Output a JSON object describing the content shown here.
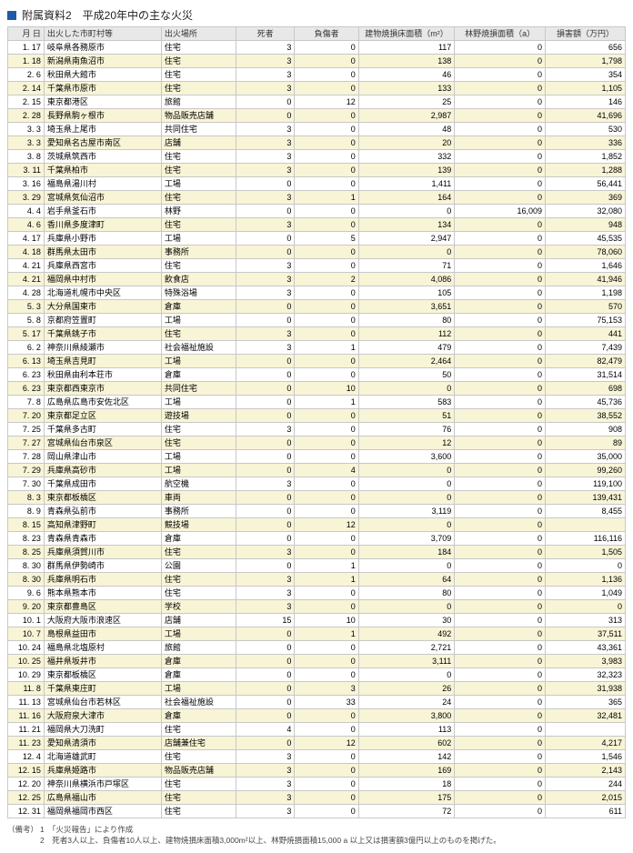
{
  "title": "附属資料2　平成20年中の主な火災",
  "headers": [
    "月 日",
    "出火した市町村等",
    "出火場所",
    "死者",
    "負傷者",
    "建物焼損床面積（m²）",
    "林野焼損面積（a）",
    "損害額（万円）"
  ],
  "rows": [
    [
      "1. 17",
      "岐阜県各務原市",
      "住宅",
      "3",
      "0",
      "117",
      "0",
      "656"
    ],
    [
      "1. 18",
      "新潟県南魚沼市",
      "住宅",
      "3",
      "0",
      "138",
      "0",
      "1,798"
    ],
    [
      "2.  6",
      "秋田県大館市",
      "住宅",
      "3",
      "0",
      "46",
      "0",
      "354"
    ],
    [
      "2. 14",
      "千葉県市原市",
      "住宅",
      "3",
      "0",
      "133",
      "0",
      "1,105"
    ],
    [
      "2. 15",
      "東京都港区",
      "旅館",
      "0",
      "12",
      "25",
      "0",
      "146"
    ],
    [
      "2. 28",
      "長野県駒ヶ根市",
      "物品販売店舗",
      "0",
      "0",
      "2,987",
      "0",
      "41,696"
    ],
    [
      "3.  3",
      "埼玉県上尾市",
      "共同住宅",
      "3",
      "0",
      "48",
      "0",
      "530"
    ],
    [
      "3.  3",
      "愛知県名古屋市南区",
      "店舗",
      "3",
      "0",
      "20",
      "0",
      "336"
    ],
    [
      "3.  8",
      "茨城県筑西市",
      "住宅",
      "3",
      "0",
      "332",
      "0",
      "1,852"
    ],
    [
      "3. 11",
      "千葉県柏市",
      "住宅",
      "3",
      "0",
      "139",
      "0",
      "1,288"
    ],
    [
      "3. 16",
      "福島県湯川村",
      "工場",
      "0",
      "0",
      "1,411",
      "0",
      "56,441"
    ],
    [
      "3. 29",
      "宮城県気仙沼市",
      "住宅",
      "3",
      "1",
      "164",
      "0",
      "369"
    ],
    [
      "4.  4",
      "岩手県釜石市",
      "林野",
      "0",
      "0",
      "0",
      "16,009",
      "32,080"
    ],
    [
      "4.  6",
      "香川県多度津町",
      "住宅",
      "3",
      "0",
      "134",
      "0",
      "948"
    ],
    [
      "4. 17",
      "兵庫県小野市",
      "工場",
      "0",
      "5",
      "2,947",
      "0",
      "45,535"
    ],
    [
      "4. 18",
      "群馬県太田市",
      "事務所",
      "0",
      "0",
      "0",
      "0",
      "78,060"
    ],
    [
      "4. 21",
      "兵庫県西宮市",
      "住宅",
      "3",
      "0",
      "71",
      "0",
      "1,646"
    ],
    [
      "4. 21",
      "福岡県中村市",
      "飲食店",
      "3",
      "2",
      "4,086",
      "0",
      "41,946"
    ],
    [
      "4. 28",
      "北海道札幌市中央区",
      "特殊浴場",
      "3",
      "0",
      "105",
      "0",
      "1,198"
    ],
    [
      "5.  3",
      "大分県国東市",
      "倉庫",
      "0",
      "0",
      "3,651",
      "0",
      "570"
    ],
    [
      "5.  8",
      "京都府笠置町",
      "工場",
      "0",
      "0",
      "80",
      "0",
      "75,153"
    ],
    [
      "5. 17",
      "千葉県銚子市",
      "住宅",
      "3",
      "0",
      "112",
      "0",
      "441"
    ],
    [
      "6.  2",
      "神奈川県綾瀬市",
      "社会福祉施設",
      "3",
      "1",
      "479",
      "0",
      "7,439"
    ],
    [
      "6. 13",
      "埼玉県吉見町",
      "工場",
      "0",
      "0",
      "2,464",
      "0",
      "82,479"
    ],
    [
      "6. 23",
      "秋田県由利本荘市",
      "倉庫",
      "0",
      "0",
      "50",
      "0",
      "31,514"
    ],
    [
      "6. 23",
      "東京都西東京市",
      "共同住宅",
      "0",
      "10",
      "0",
      "0",
      "698"
    ],
    [
      "7.  8",
      "広島県広島市安佐北区",
      "工場",
      "0",
      "1",
      "583",
      "0",
      "45,736"
    ],
    [
      "7. 20",
      "東京都足立区",
      "遊技場",
      "0",
      "0",
      "51",
      "0",
      "38,552"
    ],
    [
      "7. 25",
      "千葉県多古町",
      "住宅",
      "3",
      "0",
      "76",
      "0",
      "908"
    ],
    [
      "7. 27",
      "宮城県仙台市泉区",
      "住宅",
      "0",
      "0",
      "12",
      "0",
      "89"
    ],
    [
      "7. 28",
      "岡山県津山市",
      "工場",
      "0",
      "0",
      "3,600",
      "0",
      "35,000"
    ],
    [
      "7. 29",
      "兵庫県高砂市",
      "工場",
      "0",
      "4",
      "0",
      "0",
      "99,260"
    ],
    [
      "7. 30",
      "千葉県成田市",
      "航空機",
      "3",
      "0",
      "0",
      "0",
      "119,100"
    ],
    [
      "8.  3",
      "東京都板橋区",
      "車両",
      "0",
      "0",
      "0",
      "0",
      "139,431"
    ],
    [
      "8.  9",
      "青森県弘前市",
      "事務所",
      "0",
      "0",
      "3,119",
      "0",
      "8,455"
    ],
    [
      "8. 15",
      "高知県津野町",
      "競技場",
      "0",
      "12",
      "0",
      "0",
      ""
    ],
    [
      "8. 23",
      "青森県青森市",
      "倉庫",
      "0",
      "0",
      "3,709",
      "0",
      "116,116"
    ],
    [
      "8. 25",
      "兵庫県須賀川市",
      "住宅",
      "3",
      "0",
      "184",
      "0",
      "1,505"
    ],
    [
      "8. 30",
      "群馬県伊勢崎市",
      "公園",
      "0",
      "1",
      "0",
      "0",
      "0"
    ],
    [
      "8. 30",
      "兵庫県明石市",
      "住宅",
      "3",
      "1",
      "64",
      "0",
      "1,136"
    ],
    [
      "9.  6",
      "熊本県熊本市",
      "住宅",
      "3",
      "0",
      "80",
      "0",
      "1,049"
    ],
    [
      "9. 20",
      "東京都豊島区",
      "学校",
      "3",
      "0",
      "0",
      "0",
      "0"
    ],
    [
      "10.  1",
      "大阪府大阪市浪速区",
      "店舗",
      "15",
      "10",
      "30",
      "0",
      "313"
    ],
    [
      "10.  7",
      "島根県益田市",
      "工場",
      "0",
      "1",
      "492",
      "0",
      "37,511"
    ],
    [
      "10. 24",
      "福島県北塩原村",
      "旅館",
      "0",
      "0",
      "2,721",
      "0",
      "43,361"
    ],
    [
      "10. 25",
      "福井県坂井市",
      "倉庫",
      "0",
      "0",
      "3,111",
      "0",
      "3,983"
    ],
    [
      "10. 29",
      "東京都板橋区",
      "倉庫",
      "0",
      "0",
      "0",
      "0",
      "32,323"
    ],
    [
      "11.  8",
      "千葉県東庄町",
      "工場",
      "0",
      "3",
      "26",
      "0",
      "31,938"
    ],
    [
      "11. 13",
      "宮城県仙台市若林区",
      "社会福祉施設",
      "0",
      "33",
      "24",
      "0",
      "365"
    ],
    [
      "11. 16",
      "大阪府泉大津市",
      "倉庫",
      "0",
      "0",
      "3,800",
      "0",
      "32,481"
    ],
    [
      "11. 21",
      "福岡県大刀洗町",
      "住宅",
      "4",
      "0",
      "113",
      "0",
      ""
    ],
    [
      "11. 23",
      "愛知県清須市",
      "店舗兼住宅",
      "0",
      "12",
      "602",
      "0",
      "4,217"
    ],
    [
      "12.  4",
      "北海道雄武町",
      "住宅",
      "3",
      "0",
      "142",
      "0",
      "1,546"
    ],
    [
      "12. 15",
      "兵庫県姫路市",
      "物品販売店舗",
      "3",
      "0",
      "169",
      "0",
      "2,143"
    ],
    [
      "12. 20",
      "神奈川県横浜市戸塚区",
      "住宅",
      "3",
      "0",
      "18",
      "0",
      "244"
    ],
    [
      "12. 25",
      "広島県福山市",
      "住宅",
      "3",
      "0",
      "175",
      "0",
      "2,015"
    ],
    [
      "12. 31",
      "福岡県福岡市西区",
      "住宅",
      "3",
      "0",
      "72",
      "0",
      "611"
    ]
  ],
  "notes": {
    "label": "（備考）",
    "lines": [
      "1　「火災報告」により作成",
      "2　死者3人以上、負傷者10人以上、建物焼損床面積3,000m²以上、林野焼損面積15,000 a 以上又は損害額3億円以上のものを掲げた。"
    ]
  }
}
